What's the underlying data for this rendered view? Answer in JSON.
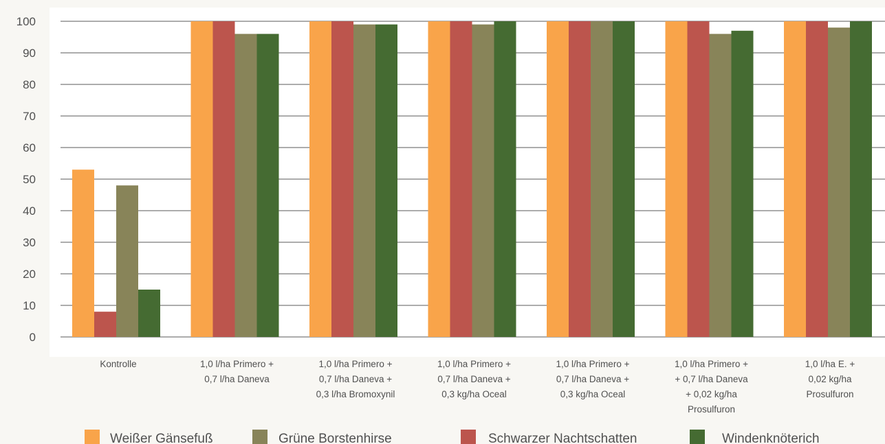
{
  "chart_data": {
    "type": "bar",
    "title": "",
    "xlabel": "",
    "ylabel": "",
    "ylim": [
      0,
      100
    ],
    "yticks": [
      0,
      10,
      20,
      30,
      40,
      50,
      60,
      70,
      80,
      90,
      100
    ],
    "grid": "horizontal",
    "legend_position": "bottom",
    "categories": [
      [
        "Kontrolle"
      ],
      [
        "1,0 l/ha Primero +",
        "0,7 l/ha Daneva"
      ],
      [
        "1,0 l/ha Primero +",
        "0,7 l/ha Daneva +",
        "0,3 l/ha Bromoxynil"
      ],
      [
        "1,0 l/ha Primero +",
        "0,7 l/ha Daneva +",
        "0,3 kg/ha Oceal"
      ],
      [
        "1,0 l/ha Primero +",
        "0,7 l/ha Daneva +",
        "0,3 kg/ha Oceal"
      ],
      [
        "1,0 l/ha Primero +",
        "+ 0,7 l/ha Daneva",
        "+ 0,02 kg/ha",
        "Prosulfuron"
      ],
      [
        "1,0 l/ha E. +",
        "0,02 kg/ha",
        "Prosulfuron"
      ]
    ],
    "series": [
      {
        "name": "Weißer Gänsefuß",
        "color": "#f9a44a",
        "values": [
          53,
          100,
          100,
          100,
          100,
          100,
          100
        ]
      },
      {
        "name": "Schwarzer Nachtschatten",
        "color": "#bc554d",
        "values": [
          8,
          100,
          100,
          100,
          100,
          100,
          100
        ]
      },
      {
        "name": "Grüne Borstenhirse",
        "color": "#888459",
        "values": [
          48,
          96,
          99,
          99,
          100,
          96,
          98
        ]
      },
      {
        "name": "Windenknöterich",
        "color": "#456b32",
        "values": [
          15,
          96,
          99,
          100,
          100,
          97,
          100
        ]
      }
    ],
    "legend_order": [
      "Weißer Gänsefuß",
      "Grüne Borstenhirse",
      "Schwarzer Nachtschatten",
      "Windenknöterich"
    ]
  }
}
